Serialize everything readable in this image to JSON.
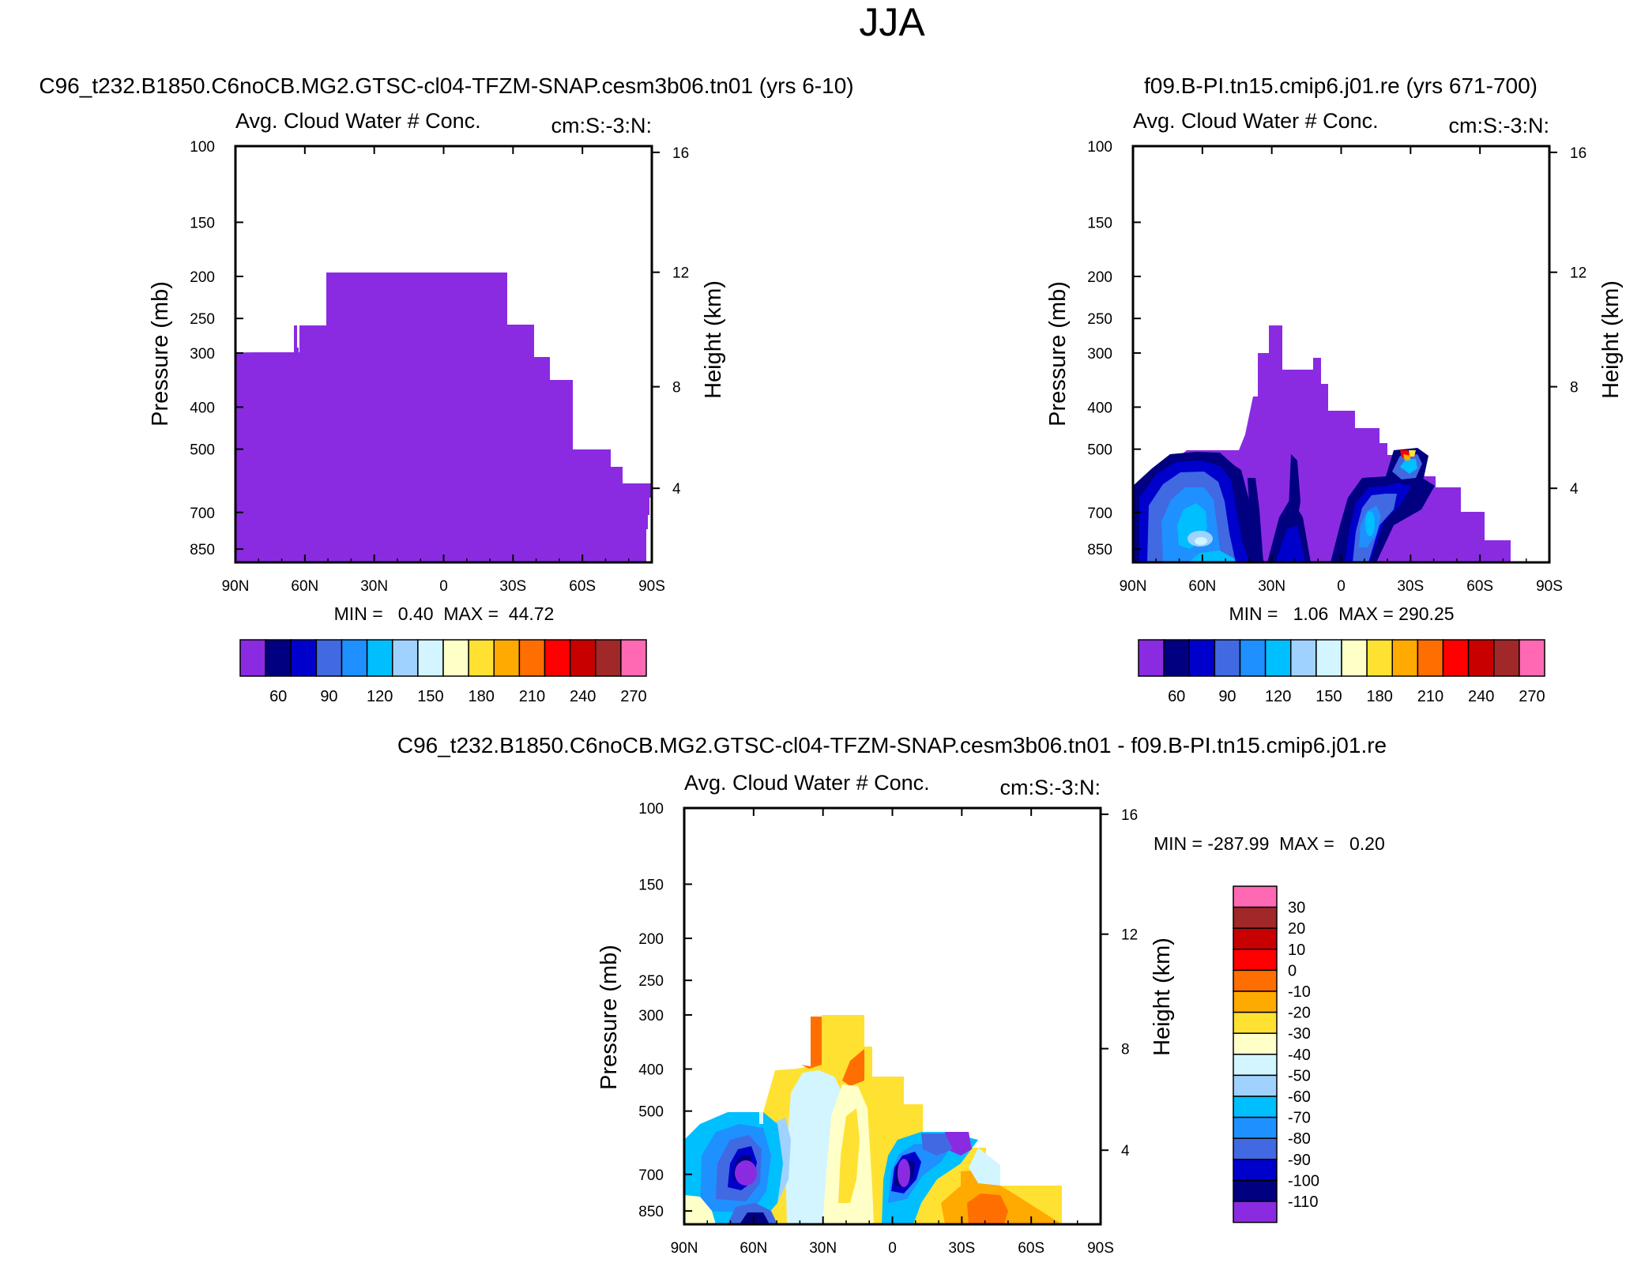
{
  "chart_data": {
    "figure_title": "JJA",
    "palette": [
      "#8a2be2",
      "#000080",
      "#0000cd",
      "#4169e1",
      "#1e90ff",
      "#00bfff",
      "#a0d2ff",
      "#d2f5ff",
      "#ffffc8",
      "#ffe132",
      "#ffaa00",
      "#ff6e00",
      "#ff0000",
      "#c80000",
      "#a02828",
      "#ff69b4"
    ],
    "panels": [
      {
        "id": "panel-a",
        "type": "heatmap",
        "case_title": "C96_t232.B1850.C6noCB.MG2.GTSC-cl04-TFZM-SNAP.cesm3b06.tn01 (yrs 6-10)",
        "plot_title": "Avg. Cloud Water # Conc.",
        "right_title": "cm:S:-3:N:",
        "ylabel": "Pressure (mb)",
        "y2label": "Height (km)",
        "x_ticks": [
          "90N",
          "60N",
          "30N",
          "0",
          "30S",
          "60S",
          "90S"
        ],
        "y_ticks": [
          "100",
          "150",
          "200",
          "250",
          "300",
          "400",
          "500",
          "700",
          "850"
        ],
        "y2_ticks": [
          "16",
          "12",
          "8",
          "4"
        ],
        "stats": "MIN =   0.40  MAX =  44.72",
        "colorbar_labels": [
          "60",
          "90",
          "120",
          "150",
          "180",
          "210",
          "240",
          "270"
        ],
        "colorbar_orientation": "horizontal"
      },
      {
        "id": "panel-b",
        "type": "heatmap",
        "case_title": "f09.B-PI.tn15.cmip6.j01.re (yrs 671-700)",
        "plot_title": "Avg. Cloud Water # Conc.",
        "right_title": "cm:S:-3:N:",
        "ylabel": "Pressure (mb)",
        "y2label": "Height (km)",
        "x_ticks": [
          "90N",
          "60N",
          "30N",
          "0",
          "30S",
          "60S",
          "90S"
        ],
        "y_ticks": [
          "100",
          "150",
          "200",
          "250",
          "300",
          "400",
          "500",
          "700",
          "850"
        ],
        "y2_ticks": [
          "16",
          "12",
          "8",
          "4"
        ],
        "stats": "MIN =   1.06  MAX = 290.25",
        "colorbar_labels": [
          "60",
          "90",
          "120",
          "150",
          "180",
          "210",
          "240",
          "270"
        ],
        "colorbar_orientation": "horizontal"
      },
      {
        "id": "panel-c",
        "type": "heatmap",
        "case_title": "C96_t232.B1850.C6noCB.MG2.GTSC-cl04-TFZM-SNAP.cesm3b06.tn01 - f09.B-PI.tn15.cmip6.j01.re",
        "plot_title": "Avg. Cloud Water # Conc.",
        "right_title": "cm:S:-3:N:",
        "ylabel": "Pressure (mb)",
        "y2label": "Height (km)",
        "x_ticks": [
          "90N",
          "60N",
          "30N",
          "0",
          "30S",
          "60S",
          "90S"
        ],
        "y_ticks": [
          "100",
          "150",
          "200",
          "250",
          "300",
          "400",
          "500",
          "700",
          "850"
        ],
        "y2_ticks": [
          "16",
          "12",
          "8",
          "4"
        ],
        "stats": "MIN = -287.99  MAX =   0.20",
        "colorbar_labels": [
          "30",
          "20",
          "10",
          "0",
          "-10",
          "-20",
          "-30",
          "-40",
          "-50",
          "-60",
          "-70",
          "-80",
          "-90",
          "-100",
          "-110"
        ],
        "colorbar_orientation": "vertical"
      }
    ]
  }
}
